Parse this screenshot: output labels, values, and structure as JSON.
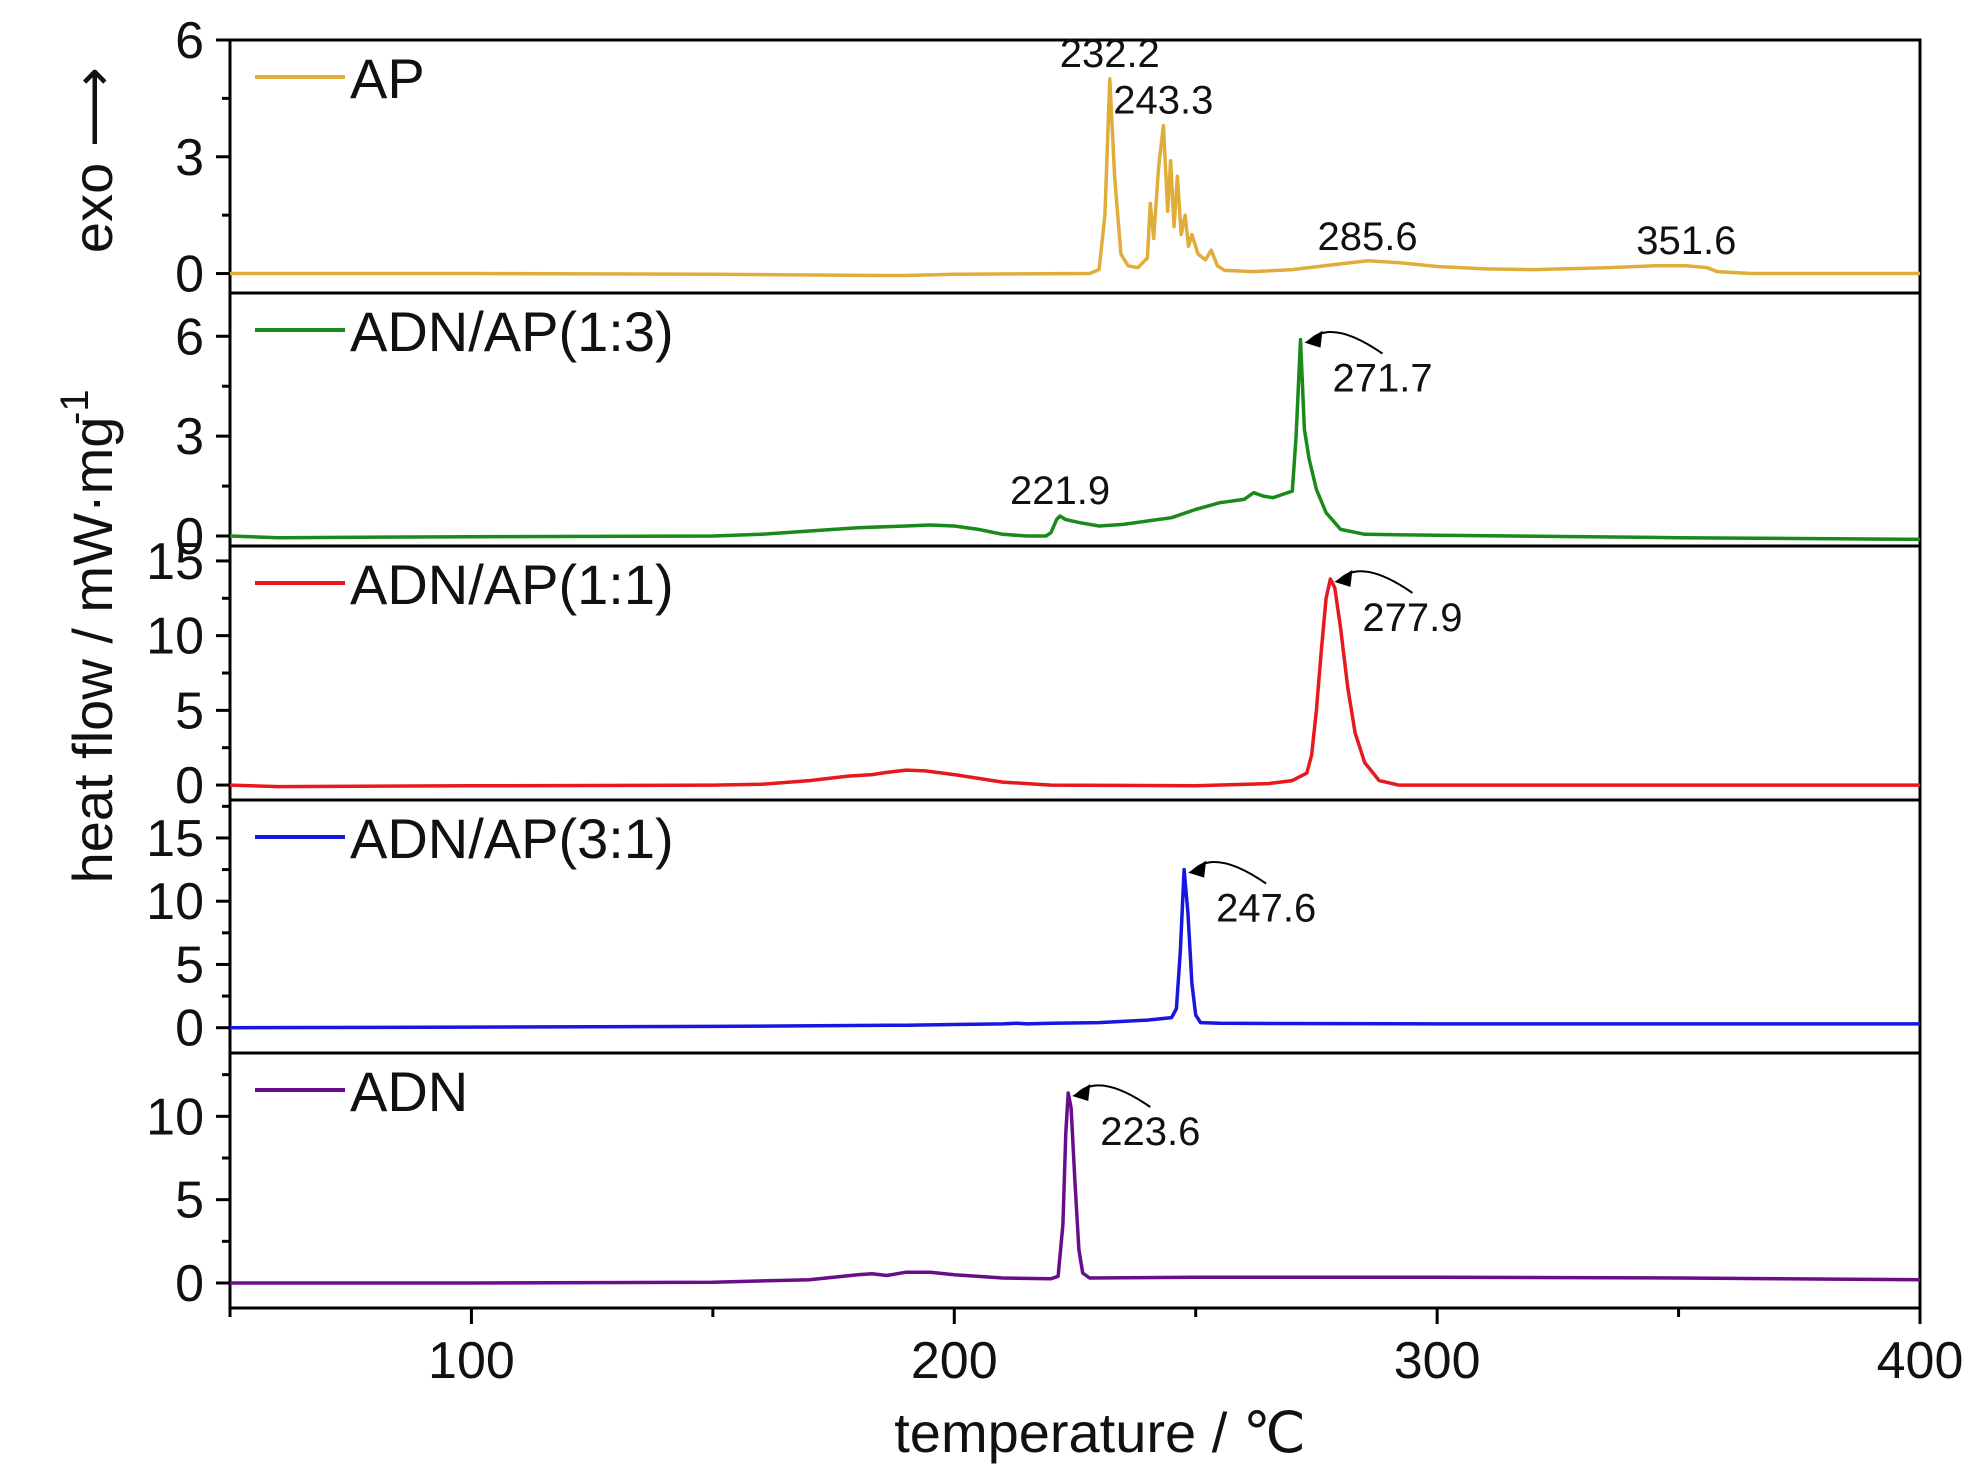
{
  "chart_data": {
    "type": "line",
    "xlabel": "temperature / ℃",
    "ylabel_main": "heat flow / mW·mg",
    "ylabel_sup": "-1",
    "exo_label": "exo ⟶",
    "xlim": [
      50,
      400
    ],
    "xticks": [
      100,
      200,
      300,
      400
    ],
    "grid": false,
    "legend_placement": "top-left of each panel",
    "panels": [
      {
        "name": "AP",
        "color": "#E0AD3A",
        "ylim": [
          -0.5,
          6
        ],
        "yticks": [
          0,
          3,
          6
        ],
        "annotations": [
          {
            "label": "232.2",
            "x": 232.2,
            "y": 5.0,
            "arrow": false
          },
          {
            "label": "243.3",
            "x": 243.3,
            "y": 3.8,
            "arrow": false
          },
          {
            "label": "285.6",
            "x": 285.6,
            "y": 0.3,
            "arrow": false
          },
          {
            "label": "351.6",
            "x": 351.6,
            "y": 0.2,
            "arrow": false
          }
        ],
        "points": [
          [
            50,
            0
          ],
          [
            100,
            0
          ],
          [
            150,
            -0.02
          ],
          [
            185,
            -0.05
          ],
          [
            190,
            -0.05
          ],
          [
            200,
            -0.02
          ],
          [
            228,
            0
          ],
          [
            230,
            0.1
          ],
          [
            231.2,
            1.5
          ],
          [
            232.2,
            5.0
          ],
          [
            233.2,
            2.5
          ],
          [
            234.5,
            0.5
          ],
          [
            236,
            0.2
          ],
          [
            238,
            0.15
          ],
          [
            240,
            0.4
          ],
          [
            240.6,
            1.8
          ],
          [
            241.3,
            0.9
          ],
          [
            242.3,
            2.7
          ],
          [
            243.3,
            3.8
          ],
          [
            244.2,
            1.6
          ],
          [
            244.8,
            2.9
          ],
          [
            245.5,
            1.2
          ],
          [
            246.2,
            2.5
          ],
          [
            247,
            1.0
          ],
          [
            247.8,
            1.5
          ],
          [
            248.5,
            0.7
          ],
          [
            249.2,
            1.0
          ],
          [
            250.5,
            0.5
          ],
          [
            252,
            0.35
          ],
          [
            253.2,
            0.6
          ],
          [
            254.5,
            0.2
          ],
          [
            256,
            0.08
          ],
          [
            262,
            0.05
          ],
          [
            270,
            0.1
          ],
          [
            278,
            0.22
          ],
          [
            285.6,
            0.33
          ],
          [
            292,
            0.28
          ],
          [
            300,
            0.18
          ],
          [
            310,
            0.12
          ],
          [
            320,
            0.1
          ],
          [
            335,
            0.15
          ],
          [
            345,
            0.2
          ],
          [
            351.6,
            0.2
          ],
          [
            356,
            0.15
          ],
          [
            358,
            0.05
          ],
          [
            365,
            0
          ],
          [
            400,
            0
          ]
        ]
      },
      {
        "name": "ADN/AP(1:3)",
        "color": "#1A8A1A",
        "ylim": [
          -0.3,
          7.3
        ],
        "yticks": [
          0,
          3,
          6
        ],
        "annotations": [
          {
            "label": "221.9",
            "x": 221.9,
            "y": 0.6,
            "arrow": false
          },
          {
            "label": "271.7",
            "x": 271.7,
            "y": 5.9,
            "arrow": true
          }
        ],
        "points": [
          [
            50,
            0
          ],
          [
            60,
            -0.05
          ],
          [
            100,
            -0.02
          ],
          [
            150,
            0
          ],
          [
            160,
            0.05
          ],
          [
            170,
            0.15
          ],
          [
            180,
            0.25
          ],
          [
            190,
            0.3
          ],
          [
            195,
            0.33
          ],
          [
            200,
            0.3
          ],
          [
            205,
            0.2
          ],
          [
            210,
            0.05
          ],
          [
            215,
            0
          ],
          [
            219,
            0
          ],
          [
            220,
            0.1
          ],
          [
            221.2,
            0.5
          ],
          [
            221.9,
            0.6
          ],
          [
            223,
            0.5
          ],
          [
            226,
            0.4
          ],
          [
            230,
            0.3
          ],
          [
            235,
            0.35
          ],
          [
            240,
            0.45
          ],
          [
            245,
            0.55
          ],
          [
            250,
            0.8
          ],
          [
            255,
            1.0
          ],
          [
            260,
            1.1
          ],
          [
            262,
            1.3
          ],
          [
            264,
            1.2
          ],
          [
            266,
            1.15
          ],
          [
            268,
            1.25
          ],
          [
            270,
            1.35
          ],
          [
            270.8,
            3.0
          ],
          [
            271.7,
            5.9
          ],
          [
            272.5,
            3.2
          ],
          [
            273.5,
            2.3
          ],
          [
            275,
            1.4
          ],
          [
            277,
            0.7
          ],
          [
            280,
            0.2
          ],
          [
            285,
            0.05
          ],
          [
            300,
            0.02
          ],
          [
            350,
            -0.05
          ],
          [
            400,
            -0.1
          ]
        ]
      },
      {
        "name": "ADN/AP(1:1)",
        "color": "#E8191D",
        "ylim": [
          -1,
          16
        ],
        "yticks": [
          0,
          5,
          10,
          15
        ],
        "annotations": [
          {
            "label": "277.9",
            "x": 277.9,
            "y": 13.8,
            "arrow": true
          }
        ],
        "points": [
          [
            50,
            0
          ],
          [
            60,
            -0.1
          ],
          [
            100,
            -0.05
          ],
          [
            150,
            0
          ],
          [
            160,
            0.05
          ],
          [
            170,
            0.3
          ],
          [
            178,
            0.6
          ],
          [
            183,
            0.7
          ],
          [
            186,
            0.85
          ],
          [
            190,
            1.0
          ],
          [
            194,
            0.95
          ],
          [
            200,
            0.7
          ],
          [
            210,
            0.2
          ],
          [
            220,
            0
          ],
          [
            250,
            -0.05
          ],
          [
            265,
            0.1
          ],
          [
            270,
            0.3
          ],
          [
            273,
            0.8
          ],
          [
            274,
            2.0
          ],
          [
            275,
            5.0
          ],
          [
            276,
            9.0
          ],
          [
            277,
            12.5
          ],
          [
            277.9,
            13.8
          ],
          [
            278.8,
            13.2
          ],
          [
            280,
            10.5
          ],
          [
            281.5,
            6.5
          ],
          [
            283,
            3.5
          ],
          [
            285,
            1.5
          ],
          [
            288,
            0.3
          ],
          [
            292,
            0
          ],
          [
            300,
            0
          ],
          [
            400,
            0
          ]
        ]
      },
      {
        "name": "ADN/AP(3:1)",
        "color": "#1717E0",
        "ylim": [
          -2,
          18
        ],
        "yticks": [
          0,
          5,
          10,
          15
        ],
        "annotations": [
          {
            "label": "247.6",
            "x": 247.6,
            "y": 12.5,
            "arrow": true
          }
        ],
        "points": [
          [
            50,
            0
          ],
          [
            100,
            0.05
          ],
          [
            150,
            0.1
          ],
          [
            190,
            0.2
          ],
          [
            200,
            0.25
          ],
          [
            210,
            0.3
          ],
          [
            213,
            0.35
          ],
          [
            215,
            0.3
          ],
          [
            220,
            0.35
          ],
          [
            230,
            0.4
          ],
          [
            240,
            0.6
          ],
          [
            245,
            0.8
          ],
          [
            246,
            1.5
          ],
          [
            246.8,
            6.0
          ],
          [
            247.6,
            12.5
          ],
          [
            248.4,
            9.0
          ],
          [
            249.2,
            3.5
          ],
          [
            250,
            1.0
          ],
          [
            251,
            0.4
          ],
          [
            255,
            0.35
          ],
          [
            300,
            0.3
          ],
          [
            400,
            0.3
          ]
        ]
      },
      {
        "name": "ADN",
        "color": "#6A0D8A",
        "ylim": [
          -1.5,
          13.8
        ],
        "yticks": [
          0,
          5,
          10
        ],
        "annotations": [
          {
            "label": "223.6",
            "x": 223.6,
            "y": 11.4,
            "arrow": true
          }
        ],
        "points": [
          [
            50,
            0
          ],
          [
            100,
            0
          ],
          [
            150,
            0.05
          ],
          [
            170,
            0.2
          ],
          [
            180,
            0.5
          ],
          [
            183,
            0.55
          ],
          [
            186,
            0.45
          ],
          [
            190,
            0.65
          ],
          [
            195,
            0.65
          ],
          [
            200,
            0.5
          ],
          [
            210,
            0.3
          ],
          [
            220,
            0.25
          ],
          [
            221.5,
            0.4
          ],
          [
            222.5,
            3.5
          ],
          [
            223.1,
            9.0
          ],
          [
            223.6,
            11.4
          ],
          [
            224.2,
            10.5
          ],
          [
            225,
            6.0
          ],
          [
            225.8,
            2.0
          ],
          [
            226.6,
            0.6
          ],
          [
            228,
            0.3
          ],
          [
            250,
            0.35
          ],
          [
            300,
            0.35
          ],
          [
            350,
            0.3
          ],
          [
            400,
            0.2
          ]
        ]
      }
    ]
  }
}
